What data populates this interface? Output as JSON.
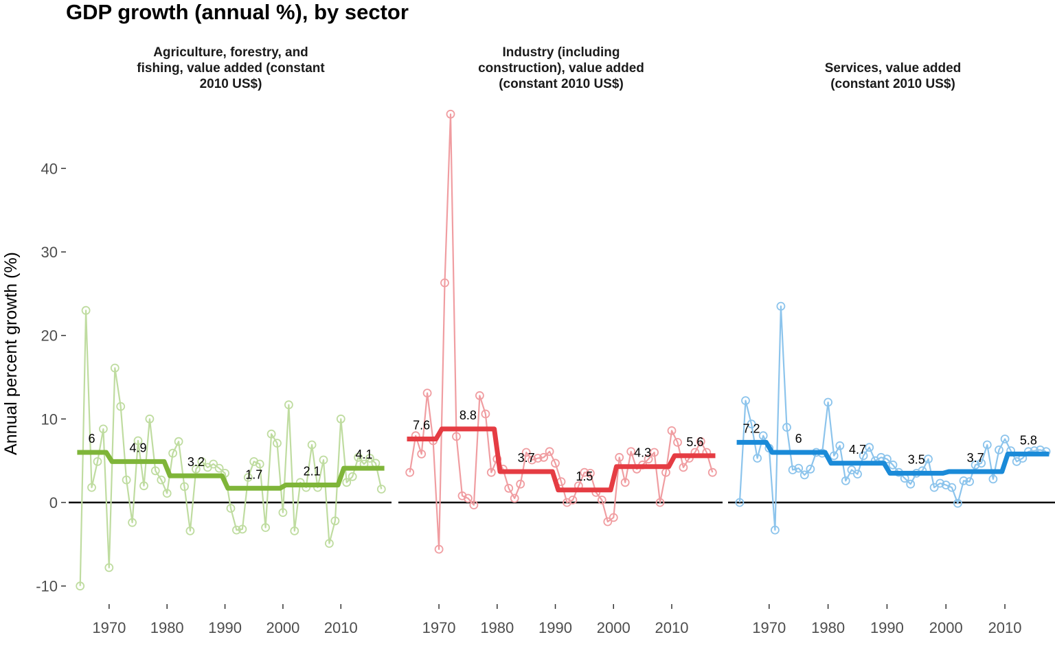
{
  "chart_data": {
    "type": "line",
    "title": "GDP growth (annual %), by sector",
    "xlabel": "",
    "ylabel": "Annual percent growth (%)",
    "ylim": [
      -12,
      48
    ],
    "y_ticks": [
      -10,
      0,
      10,
      20,
      30,
      40
    ],
    "x_ticks": [
      1970,
      1980,
      1990,
      2000,
      2010
    ],
    "xlim": [
      1963.5,
      2018.5
    ],
    "grid": false,
    "zero_line": 0,
    "panels": [
      {
        "name": "Agriculture, forestry, and fishing, value added (constant 2010 US$)",
        "title_lines": [
          "Agriculture, forestry, and",
          "fishing, value added (constant",
          "2010 US$)"
        ],
        "color": "#7fb539",
        "light_color": "#bfdca0",
        "x": [
          1965,
          1966,
          1967,
          1968,
          1969,
          1970,
          1971,
          1972,
          1973,
          1974,
          1975,
          1976,
          1977,
          1978,
          1979,
          1980,
          1981,
          1982,
          1983,
          1984,
          1985,
          1986,
          1987,
          1988,
          1989,
          1990,
          1991,
          1992,
          1993,
          1994,
          1995,
          1996,
          1997,
          1998,
          1999,
          2000,
          2001,
          2002,
          2003,
          2004,
          2005,
          2006,
          2007,
          2008,
          2009,
          2010,
          2011,
          2012,
          2013,
          2014,
          2015,
          2016,
          2017
        ],
        "values": [
          -10.0,
          23.0,
          1.8,
          4.9,
          8.8,
          -7.8,
          16.1,
          11.5,
          2.7,
          -2.4,
          7.4,
          2.0,
          10.0,
          3.8,
          2.7,
          1.1,
          5.9,
          7.3,
          1.9,
          -3.4,
          4.0,
          4.9,
          4.2,
          4.6,
          4.1,
          3.5,
          -0.7,
          -3.3,
          -3.2,
          3.0,
          4.9,
          4.6,
          -3.0,
          8.2,
          7.1,
          -1.2,
          11.7,
          -3.4,
          2.4,
          1.8,
          6.9,
          1.8,
          5.1,
          -4.9,
          -2.2,
          10.0,
          2.4,
          3.1,
          5.4,
          4.6,
          5.3,
          4.7,
          1.6
        ],
        "decade_means": [
          {
            "x_start": 1964.5,
            "x_end": 1969.5,
            "mean": 6,
            "label": "6"
          },
          {
            "x_start": 1970.5,
            "x_end": 1979.5,
            "mean": 4.9,
            "label": "4.9"
          },
          {
            "x_start": 1980.5,
            "x_end": 1989.5,
            "mean": 3.2,
            "label": "3.2"
          },
          {
            "x_start": 1990.5,
            "x_end": 1999.5,
            "mean": 1.7,
            "label": "1.7"
          },
          {
            "x_start": 2000.5,
            "x_end": 2009.5,
            "mean": 2.1,
            "label": "2.1"
          },
          {
            "x_start": 2010.5,
            "x_end": 2017.5,
            "mean": 4.1,
            "label": "4.1"
          }
        ]
      },
      {
        "name": "Industry (including construction), value added (constant 2010 US$)",
        "title_lines": [
          "Industry (including",
          "construction), value added",
          "(constant 2010 US$)"
        ],
        "color": "#e53c43",
        "light_color": "#f09da1",
        "x": [
          1965,
          1966,
          1967,
          1968,
          1969,
          1970,
          1971,
          1972,
          1973,
          1974,
          1975,
          1976,
          1977,
          1978,
          1979,
          1980,
          1981,
          1982,
          1983,
          1984,
          1985,
          1986,
          1987,
          1988,
          1989,
          1990,
          1991,
          1992,
          1993,
          1994,
          1995,
          1996,
          1997,
          1998,
          1999,
          2000,
          2001,
          2002,
          2003,
          2004,
          2005,
          2006,
          2007,
          2008,
          2009,
          2010,
          2011,
          2012,
          2013,
          2014,
          2015,
          2016,
          2017
        ],
        "values": [
          3.6,
          8.0,
          5.8,
          13.1,
          7.4,
          -5.6,
          26.3,
          46.5,
          7.9,
          0.8,
          0.5,
          -0.3,
          12.8,
          10.6,
          3.6,
          5.2,
          4.0,
          1.7,
          0.5,
          2.2,
          6.0,
          5.1,
          5.3,
          5.4,
          6.1,
          4.7,
          2.5,
          0.0,
          0.3,
          2.0,
          3.6,
          3.5,
          1.2,
          0.3,
          -2.3,
          -1.8,
          5.4,
          2.4,
          6.1,
          4.0,
          4.5,
          5.2,
          6.0,
          0.0,
          3.6,
          8.6,
          7.2,
          4.2,
          5.3,
          6.0,
          7.3,
          6.0,
          3.6
        ],
        "decade_means": [
          {
            "x_start": 1964.5,
            "x_end": 1969.5,
            "mean": 7.6,
            "label": "7.6"
          },
          {
            "x_start": 1970.5,
            "x_end": 1979.5,
            "mean": 8.8,
            "label": "8.8"
          },
          {
            "x_start": 1980.5,
            "x_end": 1989.5,
            "mean": 3.7,
            "label": "3.7"
          },
          {
            "x_start": 1990.5,
            "x_end": 1999.5,
            "mean": 1.5,
            "label": "1.5"
          },
          {
            "x_start": 2000.5,
            "x_end": 2009.5,
            "mean": 4.3,
            "label": "4.3"
          },
          {
            "x_start": 2010.5,
            "x_end": 2017.5,
            "mean": 5.6,
            "label": "5.6"
          }
        ]
      },
      {
        "name": "Services, value added (constant 2010 US$)",
        "title_lines": [
          "Services, value added",
          "(constant 2010 US$)"
        ],
        "color": "#1a8ad8",
        "light_color": "#8cc4ec",
        "x": [
          1965,
          1966,
          1967,
          1968,
          1969,
          1970,
          1971,
          1972,
          1973,
          1974,
          1975,
          1976,
          1977,
          1978,
          1979,
          1980,
          1981,
          1982,
          1983,
          1984,
          1985,
          1986,
          1987,
          1988,
          1989,
          1990,
          1991,
          1992,
          1993,
          1994,
          1995,
          1996,
          1997,
          1998,
          1999,
          2000,
          2001,
          2002,
          2003,
          2004,
          2005,
          2006,
          2007,
          2008,
          2009,
          2010,
          2011,
          2012,
          2013,
          2014,
          2015,
          2016,
          2017
        ],
        "values": [
          0.0,
          12.2,
          9.4,
          5.3,
          8.0,
          6.5,
          -3.3,
          23.5,
          9.0,
          3.9,
          4.1,
          3.3,
          4.0,
          6.0,
          5.9,
          12.0,
          5.6,
          6.8,
          2.6,
          3.9,
          3.4,
          5.6,
          6.6,
          5.0,
          5.4,
          5.2,
          4.5,
          3.6,
          2.9,
          2.2,
          3.5,
          3.8,
          5.2,
          1.8,
          2.3,
          2.1,
          1.8,
          -0.1,
          2.6,
          2.5,
          4.5,
          4.7,
          6.9,
          2.8,
          6.3,
          7.6,
          6.2,
          4.9,
          5.3,
          6.1,
          6.2,
          6.3,
          6.1
        ],
        "decade_means": [
          {
            "x_start": 1964.5,
            "x_end": 1969.5,
            "mean": 7.2,
            "label": "7.2"
          },
          {
            "x_start": 1970.5,
            "x_end": 1979.5,
            "mean": 6,
            "label": "6"
          },
          {
            "x_start": 1980.5,
            "x_end": 1989.5,
            "mean": 4.7,
            "label": "4.7"
          },
          {
            "x_start": 1990.5,
            "x_end": 1999.5,
            "mean": 3.5,
            "label": "3.5"
          },
          {
            "x_start": 2000.5,
            "x_end": 2009.5,
            "mean": 3.7,
            "label": "3.7"
          },
          {
            "x_start": 2010.5,
            "x_end": 2017.5,
            "mean": 5.8,
            "label": "5.8"
          }
        ]
      }
    ]
  }
}
